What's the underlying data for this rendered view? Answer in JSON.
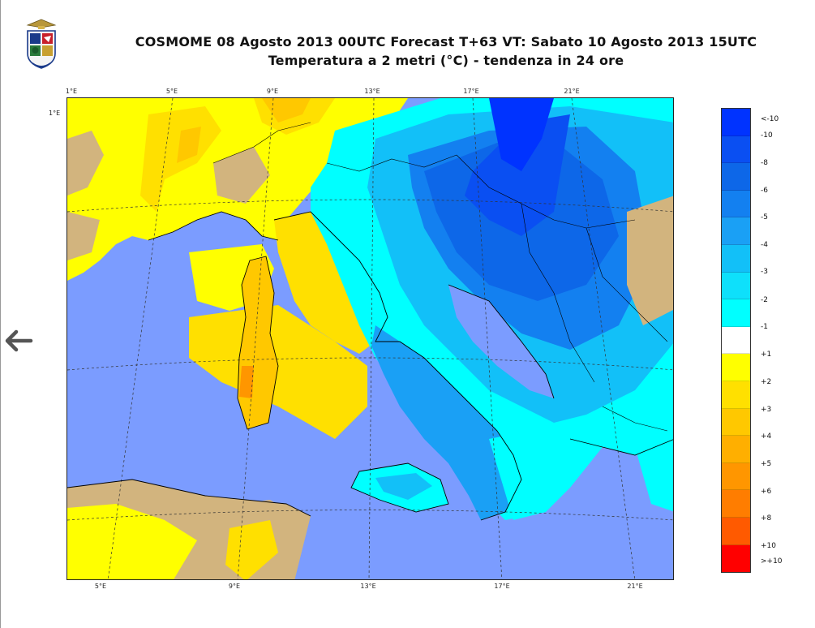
{
  "header": {
    "title_line1": "COSMOME 08 Agosto 2013 00UTC Forecast T+63 VT: Sabato 10 Agosto 2013 15UTC",
    "title_line2": "Temperatura a 2 metri (°C) - tendenza in 24 ore"
  },
  "map": {
    "top_ticks": [
      "1°E",
      "5°E",
      "9°E",
      "13°E",
      "17°E",
      "21°E"
    ],
    "bottom_ticks": [
      "5°E",
      "9°E",
      "13°E",
      "17°E",
      "21°E"
    ],
    "left_tick": "1°E"
  },
  "legend": {
    "colors": [
      "#0033ff",
      "#0a4ff2",
      "#0d67e8",
      "#1380f0",
      "#1aa0f5",
      "#12c0f8",
      "#0ee0fb",
      "#00ffff",
      "#ffffff",
      "#ffff00",
      "#ffe000",
      "#ffc800",
      "#ffaf00",
      "#ff9600",
      "#ff7d00",
      "#ff5a00",
      "#ff0000"
    ],
    "labels": [
      "<-10",
      "-10",
      "-8",
      "-6",
      "-5",
      "-4",
      "-3",
      "-2",
      "-1",
      "+1",
      "+2",
      "+3",
      "+4",
      "+5",
      "+6",
      "+8",
      "+10",
      ">+10"
    ]
  },
  "palette": {
    "sea": "#7b9cff",
    "land_unchanged": "#d2b47e",
    "border_line": "#000000"
  },
  "icons": {
    "emblem": "aeronautica-militare-emblem-icon",
    "back": "arrow-left-icon"
  }
}
